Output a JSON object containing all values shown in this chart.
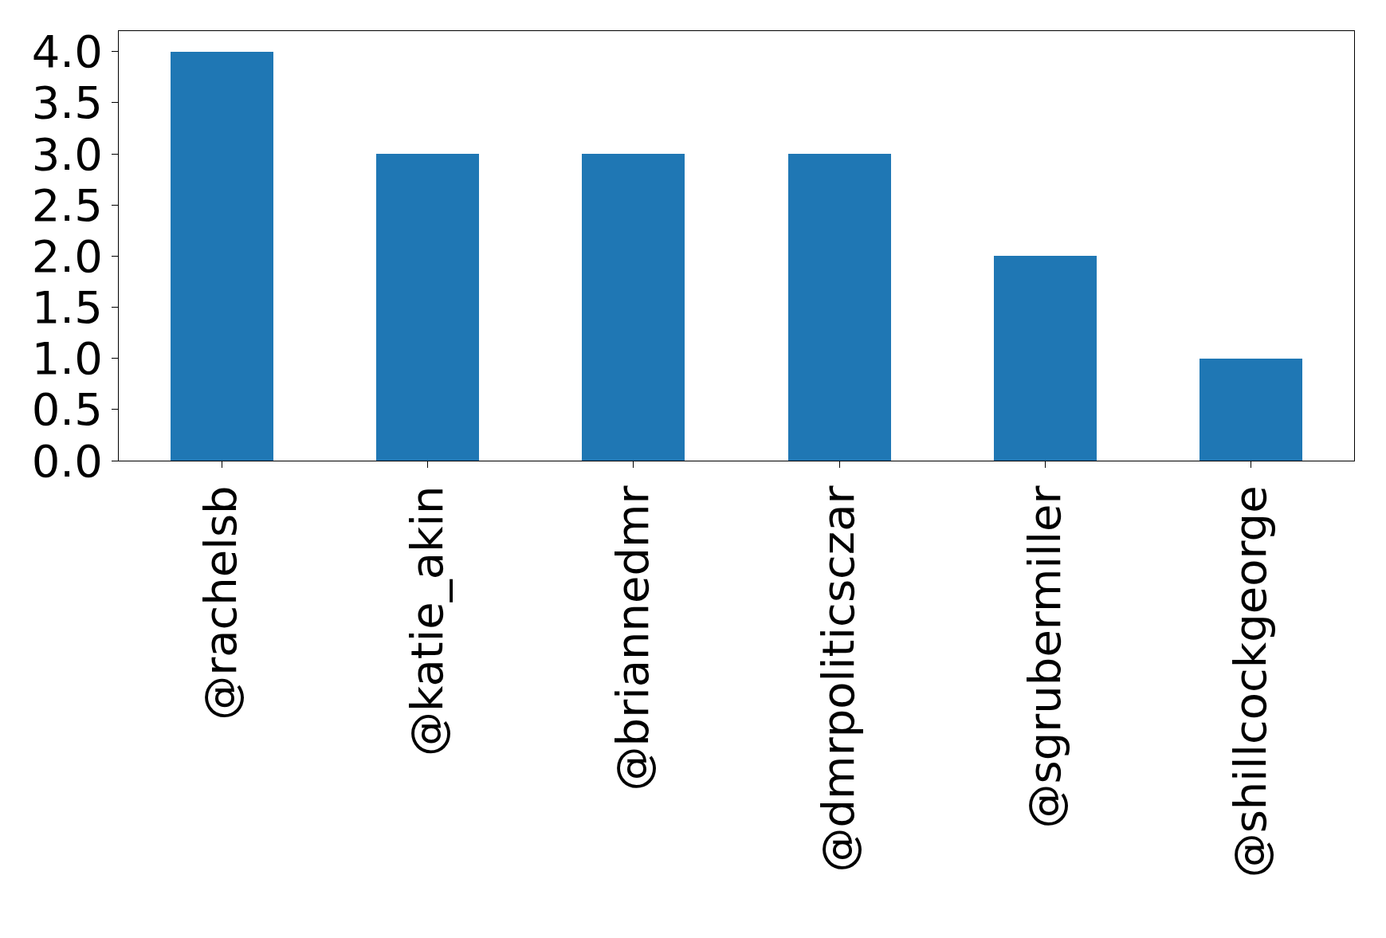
{
  "chart_data": {
    "type": "bar",
    "categories": [
      "@rachelsb",
      "@katie_akin",
      "@briannedmr",
      "@dmrpoliticsczar",
      "@sgrubermiller",
      "@shillcockgeorge"
    ],
    "values": [
      4,
      3,
      3,
      3,
      2,
      1
    ],
    "color": "#1f77b4",
    "ylim": [
      0,
      4.2
    ],
    "yticks": [
      {
        "value": 0,
        "label": "0.0"
      },
      {
        "value": 0.5,
        "label": "0.5"
      },
      {
        "value": 1,
        "label": "1.0"
      },
      {
        "value": 1.5,
        "label": "1.5"
      },
      {
        "value": 2,
        "label": "2.0"
      },
      {
        "value": 2.5,
        "label": "2.5"
      },
      {
        "value": 3,
        "label": "3.0"
      },
      {
        "value": 3.5,
        "label": "3.5"
      },
      {
        "value": 4,
        "label": "4.0"
      }
    ]
  }
}
